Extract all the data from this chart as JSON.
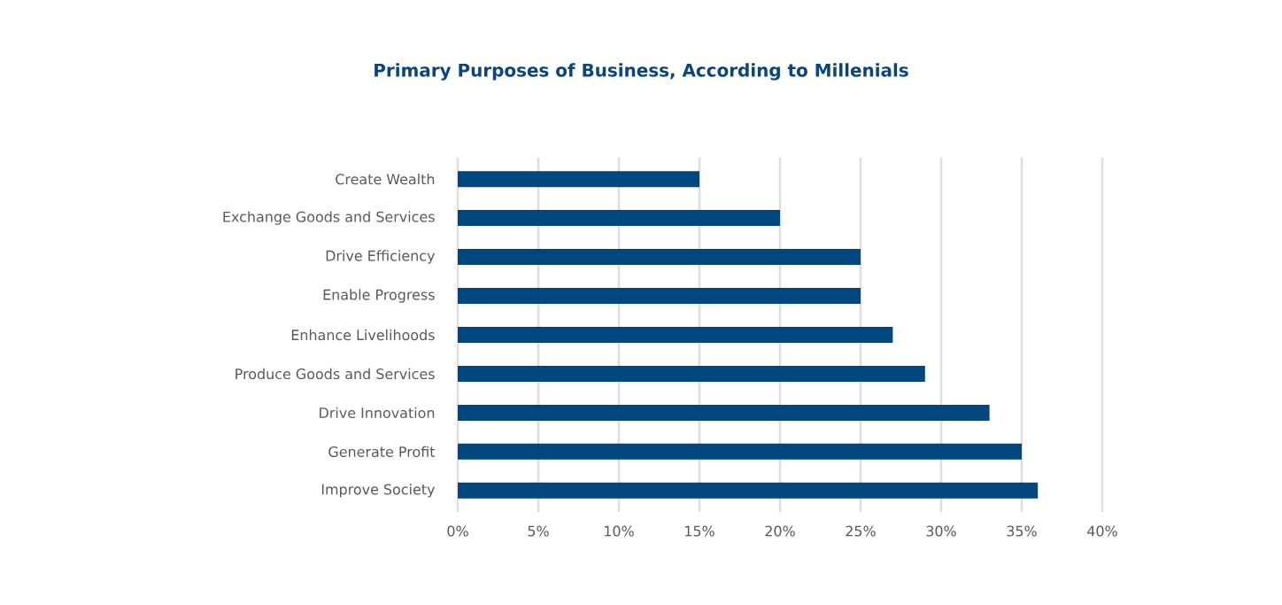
{
  "chart_data": {
    "type": "bar",
    "orientation": "horizontal",
    "title": "Primary Purposes of Business, According to Millenials",
    "categories": [
      "Create Wealth",
      "Exchange Goods and Services",
      "Drive Efficiency",
      "Enable Progress",
      "Enhance Livelihoods",
      "Produce Goods and Services",
      "Drive Innovation",
      "Generate Profit",
      "Improve Society"
    ],
    "values": [
      15,
      20,
      25,
      25,
      27,
      29,
      33,
      35,
      36
    ],
    "color": "#00467f",
    "xlim": [
      0,
      40
    ],
    "xticks": [
      {
        "value": 0,
        "label": "0%"
      },
      {
        "value": 5,
        "label": "5%"
      },
      {
        "value": 10,
        "label": "10%"
      },
      {
        "value": 15,
        "label": "15%"
      },
      {
        "value": 20,
        "label": "20%"
      },
      {
        "value": 25,
        "label": "25%"
      },
      {
        "value": 30,
        "label": "30%"
      },
      {
        "value": 35,
        "label": "35%"
      },
      {
        "value": 40,
        "label": "40%"
      }
    ],
    "grid": "x"
  }
}
